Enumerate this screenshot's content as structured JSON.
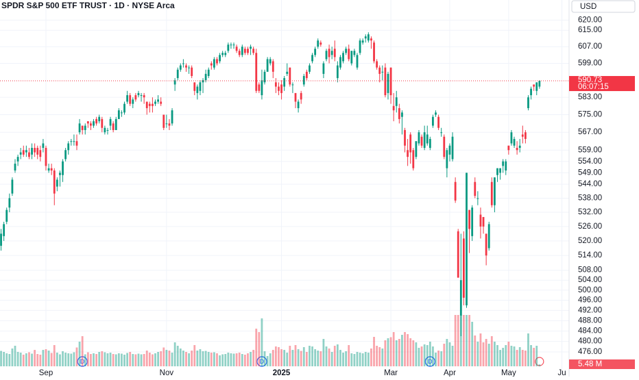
{
  "chart_data": {
    "type": "candlestick",
    "title": "SPDR S&P 500 ETF TRUST · 1D · NYSE Arca",
    "currency": "USD",
    "countdown": "06:07:15",
    "volume_label": "5.48 M",
    "log_scale": true,
    "grid": true,
    "up_color": "#089981",
    "down_color": "#f23645",
    "ylim": [
      469.3,
      630
    ],
    "yticks": [
      {
        "value": 620,
        "label": "620.00"
      },
      {
        "value": 615,
        "label": "615.00"
      },
      {
        "value": 607,
        "label": "607.00"
      },
      {
        "value": 599,
        "label": "599.00"
      },
      {
        "value": 583,
        "label": "583.00"
      },
      {
        "value": 575,
        "label": "575.00"
      },
      {
        "value": 567,
        "label": "567.00"
      },
      {
        "value": 559,
        "label": "559.00"
      },
      {
        "value": 554,
        "label": "554.00"
      },
      {
        "value": 549,
        "label": "549.00"
      },
      {
        "value": 544,
        "label": "544.00"
      },
      {
        "value": 538,
        "label": "538.00"
      },
      {
        "value": 532,
        "label": "532.00"
      },
      {
        "value": 526,
        "label": "526.00"
      },
      {
        "value": 520,
        "label": "520.00"
      },
      {
        "value": 514,
        "label": "514.00"
      },
      {
        "value": 508,
        "label": "508.00"
      },
      {
        "value": 504,
        "label": "504.00"
      },
      {
        "value": 500,
        "label": "500.00"
      },
      {
        "value": 496,
        "label": "496.00"
      },
      {
        "value": 492,
        "label": "492.00"
      },
      {
        "value": 488,
        "label": "488.00"
      },
      {
        "value": 484,
        "label": "484.00"
      },
      {
        "value": 480,
        "label": "480.00"
      },
      {
        "value": 476,
        "label": "476.00"
      }
    ],
    "xticks": [
      {
        "value": 16,
        "label": "Sep"
      },
      {
        "value": 59,
        "label": "Nov"
      },
      {
        "value": 100,
        "label": "2025"
      },
      {
        "value": 139,
        "label": "Mar"
      },
      {
        "value": 160,
        "label": "Apr"
      },
      {
        "value": 181,
        "label": "May"
      },
      {
        "value": 200,
        "label": "Ju"
      }
    ],
    "events": [
      {
        "x": 29,
        "label": "D"
      },
      {
        "x": 93,
        "label": "D"
      },
      {
        "x": 153,
        "label": "D"
      }
    ],
    "series": [
      {
        "name": "SPY",
        "open": [
          518,
          522,
          528,
          534,
          540,
          550,
          554,
          557,
          559,
          558,
          558,
          557,
          560,
          560,
          559,
          560,
          560,
          550,
          551,
          550,
          543,
          548,
          548,
          555,
          559,
          563,
          563,
          563,
          567,
          570,
          568,
          572,
          571,
          570,
          573,
          572,
          573,
          567,
          568,
          570,
          571,
          568,
          573,
          576,
          576,
          581,
          584,
          580,
          584,
          584,
          584,
          584,
          581,
          580,
          580,
          580,
          581,
          581,
          575,
          571,
          571,
          571,
          589,
          592,
          596,
          599,
          598,
          597,
          597,
          590,
          585,
          586,
          590,
          591,
          593,
          599,
          597,
          601,
          600,
          603,
          603,
          605,
          608,
          608,
          607,
          605,
          603,
          606,
          606,
          606,
          606,
          604,
          589,
          584,
          590,
          595,
          599,
          600,
          590,
          588,
          589,
          588,
          594,
          597,
          589,
          585,
          578,
          585,
          589,
          595,
          595,
          600,
          603,
          607,
          609,
          594,
          601,
          606,
          603,
          606,
          592,
          597,
          600,
          604,
          606,
          599,
          603,
          597,
          604,
          609,
          611,
          610,
          611,
          609,
          600,
          597,
          595,
          597,
          585,
          597,
          579,
          579,
          578,
          574,
          568,
          559,
          566,
          559,
          556,
          562,
          565,
          560,
          562,
          560,
          570,
          575,
          574,
          567,
          565,
          551,
          557,
          555,
          545,
          524,
          490,
          521,
          494,
          533,
          522,
          545,
          538,
          531,
          530,
          523,
          517,
          545,
          535,
          548,
          549,
          552,
          550,
          561,
          562,
          561,
          560,
          560,
          566,
          567,
          578,
          584,
          589,
          586,
          588
        ],
        "high": [
          525,
          528,
          534,
          540,
          547,
          555,
          557,
          560,
          561,
          561,
          560,
          562,
          562,
          561,
          561,
          564,
          561,
          553,
          553,
          551,
          547,
          550,
          555,
          560,
          563,
          564,
          566,
          566,
          573,
          570,
          571,
          572,
          572,
          573,
          574,
          575,
          574,
          570,
          569,
          574,
          572,
          574,
          578,
          577,
          581,
          586,
          585,
          583,
          585,
          586,
          585,
          585,
          581,
          581,
          583,
          582,
          584,
          583,
          575,
          575,
          573,
          578,
          592,
          597,
          599,
          601,
          599,
          598,
          598,
          590,
          589,
          591,
          592,
          596,
          597,
          600,
          602,
          602,
          604,
          605,
          605,
          609,
          609,
          609,
          608,
          606,
          608,
          607,
          607,
          608,
          607,
          606,
          590,
          596,
          596,
          602,
          602,
          601,
          592,
          590,
          591,
          593,
          599,
          597,
          590,
          585,
          582,
          586,
          594,
          596,
          599,
          604,
          607,
          611,
          610,
          600,
          606,
          608,
          607,
          610,
          600,
          603,
          605,
          607,
          608,
          605,
          606,
          604,
          611,
          611,
          613,
          614,
          612,
          610,
          601,
          598,
          598,
          599,
          595,
          597,
          585,
          586,
          580,
          577,
          569,
          564,
          567,
          560,
          563,
          568,
          566,
          570,
          570,
          565,
          575,
          577,
          575,
          569,
          566,
          560,
          562,
          567,
          547,
          525,
          523,
          524,
          549,
          533,
          535,
          547,
          541,
          534,
          530,
          523,
          528,
          547,
          547,
          551,
          551,
          555,
          555,
          561,
          568,
          565,
          563,
          564,
          570,
          568,
          584,
          588,
          589,
          590,
          591
        ],
        "low": [
          516,
          520,
          527,
          532,
          539,
          549,
          552,
          555,
          556,
          556,
          555,
          555,
          556,
          555,
          554,
          558,
          550,
          549,
          548,
          535,
          541,
          543,
          545,
          554,
          557,
          561,
          561,
          559,
          566,
          566,
          566,
          569,
          568,
          569,
          570,
          571,
          567,
          566,
          566,
          568,
          567,
          568,
          573,
          574,
          575,
          580,
          579,
          578,
          581,
          583,
          581,
          580,
          575,
          576,
          576,
          579,
          580,
          579,
          568,
          569,
          568,
          570,
          586,
          591,
          595,
          597,
          595,
          594,
          592,
          584,
          582,
          584,
          585,
          590,
          592,
          596,
          596,
          598,
          599,
          602,
          602,
          604,
          606,
          606,
          604,
          602,
          602,
          603,
          603,
          603,
          603,
          585,
          585,
          582,
          589,
          595,
          598,
          592,
          585,
          584,
          582,
          586,
          593,
          588,
          585,
          578,
          576,
          580,
          588,
          591,
          594,
          599,
          602,
          606,
          607,
          592,
          600,
          599,
          601,
          600,
          590,
          596,
          599,
          603,
          600,
          598,
          602,
          596,
          603,
          608,
          609,
          609,
          606,
          599,
          596,
          590,
          591,
          583,
          582,
          580,
          572,
          576,
          571,
          566,
          558,
          552,
          553,
          550,
          555,
          561,
          560,
          559,
          561,
          559,
          569,
          574,
          568,
          565,
          555,
          547,
          554,
          554,
          536,
          505,
          482,
          494,
          493,
          515,
          520,
          538,
          535,
          521,
          523,
          510,
          516,
          534,
          532,
          545,
          546,
          549,
          548,
          557,
          561,
          560,
          557,
          558,
          562,
          562,
          577,
          582,
          586,
          584,
          587
        ],
        "close": [
          523,
          527,
          533,
          538,
          546,
          553,
          556,
          558,
          557,
          559,
          556,
          560,
          558,
          557,
          556,
          562,
          552,
          551,
          550,
          540,
          546,
          549,
          554,
          559,
          562,
          563,
          563,
          561,
          571,
          568,
          570,
          571,
          570,
          572,
          571,
          574,
          569,
          569,
          568,
          573,
          568,
          573,
          577,
          576,
          580,
          584,
          580,
          582,
          582,
          585,
          584,
          583,
          578,
          579,
          579,
          581,
          582,
          580,
          569,
          571,
          570,
          577,
          591,
          596,
          598,
          599,
          597,
          597,
          593,
          586,
          588,
          590,
          591,
          594,
          596,
          598,
          601,
          599,
          603,
          604,
          604,
          608,
          608,
          608,
          605,
          603,
          607,
          604,
          604,
          607,
          604,
          586,
          586,
          591,
          595,
          601,
          601,
          595,
          588,
          586,
          585,
          592,
          595,
          589,
          589,
          581,
          581,
          582,
          593,
          592,
          598,
          603,
          606,
          610,
          608,
          599,
          605,
          602,
          605,
          602,
          598,
          602,
          604,
          606,
          601,
          605,
          605,
          603,
          610,
          610,
          612,
          613,
          610,
          600,
          597,
          594,
          595,
          584,
          594,
          584,
          577,
          583,
          573,
          576,
          561,
          556,
          558,
          551,
          563,
          567,
          561,
          567,
          566,
          564,
          574,
          576,
          569,
          567,
          556,
          559,
          561,
          565,
          537,
          505,
          504,
          497,
          549,
          525,
          534,
          539,
          538,
          526,
          526,
          514,
          527,
          535,
          547,
          551,
          551,
          554,
          554,
          559,
          567,
          564,
          559,
          561,
          565,
          564,
          583,
          587,
          588,
          590,
          590.73
        ]
      }
    ],
    "volume_ylim": [
      0,
      150
    ],
    "volume": {
      "values": [
        45,
        42,
        38,
        36,
        52,
        60,
        42,
        40,
        34,
        38,
        41,
        37,
        48,
        36,
        34,
        48,
        50,
        46,
        39,
        62,
        40,
        35,
        44,
        40,
        38,
        37,
        41,
        55,
        72,
        88,
        35,
        41,
        36,
        38,
        36,
        42,
        44,
        41,
        38,
        40,
        36,
        35,
        38,
        37,
        34,
        39,
        42,
        36,
        35,
        37,
        35,
        36,
        46,
        40,
        35,
        38,
        42,
        44,
        55,
        48,
        46,
        40,
        70,
        60,
        52,
        46,
        42,
        38,
        46,
        62,
        46,
        50,
        44,
        45,
        42,
        40,
        41,
        38,
        32,
        35,
        36,
        40,
        38,
        37,
        38,
        40,
        36,
        34,
        38,
        42,
        48,
        110,
        100,
        140,
        44,
        30,
        38,
        48,
        58,
        56,
        50,
        48,
        40,
        60,
        48,
        62,
        50,
        45,
        56,
        42,
        60,
        58,
        50,
        46,
        44,
        80,
        58,
        52,
        42,
        60,
        64,
        48,
        40,
        44,
        62,
        38,
        36,
        42,
        40,
        38,
        42,
        40,
        52,
        86,
        60,
        56,
        52,
        76,
        82,
        85,
        100,
        76,
        80,
        92,
        100,
        94,
        82,
        76,
        70,
        54,
        58,
        64,
        62,
        72,
        58,
        40,
        46,
        44,
        66,
        80,
        70,
        60,
        150,
        218,
        256,
        210,
        240,
        170,
        130,
        90,
        72,
        96,
        70,
        80,
        66,
        88,
        72,
        62,
        48,
        54,
        62,
        72,
        60,
        58,
        48,
        56,
        48,
        46,
        96,
        62,
        54,
        60,
        5.48
      ]
    }
  }
}
